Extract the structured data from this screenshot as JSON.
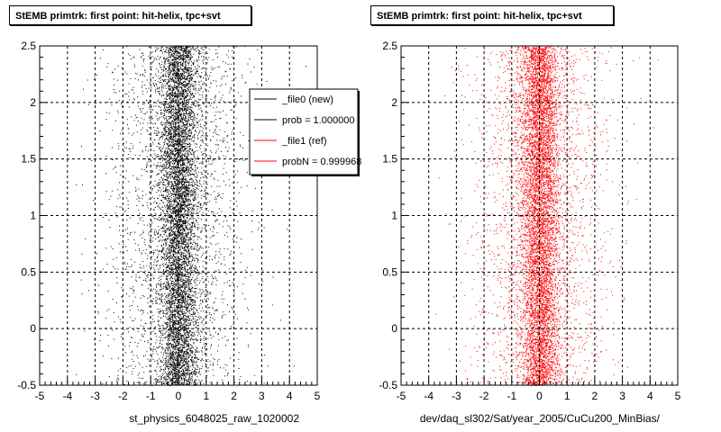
{
  "chart_data": [
    {
      "type": "scatter",
      "title": "StEMB primtrk: first point: hit-helix, tpc+svt",
      "xlabel": "st_physics_6048025_raw_1020002",
      "ylabel": "",
      "xlim": [
        -5,
        5
      ],
      "ylim": [
        -0.5,
        2.5
      ],
      "x_ticks": [
        "-5",
        "-4",
        "-3",
        "-2",
        "-1",
        "0",
        "1",
        "2",
        "3",
        "4",
        "5"
      ],
      "y_ticks": [
        "-0.5",
        "0",
        "0.5",
        "1",
        "1.5",
        "2",
        "2.5"
      ],
      "grid": true,
      "point_color": "#000000",
      "distribution": {
        "x_center": 0.0,
        "x_core_sigma": 0.35,
        "x_tail_sigma": 1.2,
        "y_range": [
          -0.5,
          2.5
        ]
      },
      "legend": {
        "placement": "top-right",
        "entries": [
          {
            "label": "_file0 (new)",
            "color": "#000000"
          },
          {
            "label": "prob = 1.000000",
            "color": "#000000"
          },
          {
            "label": "_file1 (ref)",
            "color": "#ff0000"
          },
          {
            "label": "probN = 0.999968",
            "color": "#ff0000"
          }
        ]
      }
    },
    {
      "type": "scatter",
      "title": "StEMB primtrk: first point: hit-helix, tpc+svt",
      "xlabel": "dev/daq_sl302/Sat/year_2005/CuCu200_MinBias/",
      "ylabel": "",
      "xlim": [
        -5,
        5
      ],
      "ylim": [
        -0.5,
        2.5
      ],
      "x_ticks": [
        "-5",
        "-4",
        "-3",
        "-2",
        "-1",
        "0",
        "1",
        "2",
        "3",
        "4",
        "5"
      ],
      "y_ticks": [
        "-0.5",
        "0",
        "0.5",
        "1",
        "1.5",
        "2",
        "2.5"
      ],
      "grid": true,
      "point_color": "#ff0000",
      "distribution": {
        "x_center": 0.0,
        "x_core_sigma": 0.35,
        "x_tail_sigma": 1.2,
        "y_range": [
          -0.5,
          2.5
        ]
      }
    }
  ]
}
